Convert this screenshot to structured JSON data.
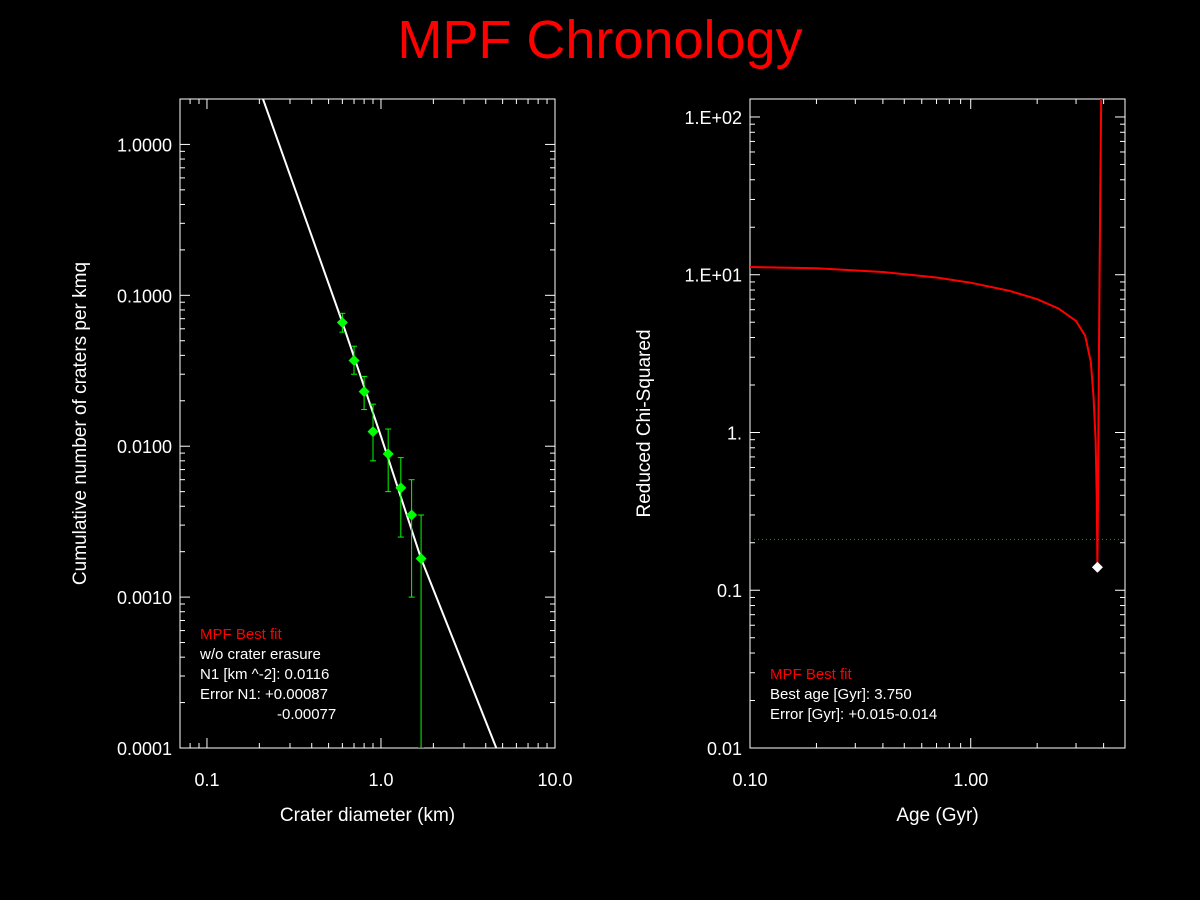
{
  "page": {
    "title": "MPF Chronology"
  },
  "colors": {
    "background": "#000000",
    "axes": "#ffffff",
    "title": "#ff0000",
    "points": "#00ff00",
    "fit_line": "#ffffff",
    "chi_curve": "#ff0000",
    "threshold_line": "#00aa00",
    "best_marker": "#ffffff"
  },
  "chart_data": [
    {
      "type": "scatter",
      "xlabel": "Crater diameter (km)",
      "ylabel": "Cumulative number of craters per kmq",
      "xscale": "log",
      "yscale": "log",
      "xlim": [
        0.07,
        10.0
      ],
      "ylim": [
        0.0001,
        2.0
      ],
      "xticks": [
        {
          "value": 0.1,
          "label": "0.1"
        },
        {
          "value": 1.0,
          "label": "1.0"
        },
        {
          "value": 10.0,
          "label": "10.0"
        }
      ],
      "yticks": [
        {
          "value": 0.0001,
          "label": "0.0001"
        },
        {
          "value": 0.001,
          "label": "0.0010"
        },
        {
          "value": 0.01,
          "label": "0.0100"
        },
        {
          "value": 0.1,
          "label": "0.1000"
        },
        {
          "value": 1.0,
          "label": "1.0000"
        }
      ],
      "grid": false,
      "series": [
        {
          "points": [
            {
              "x": 0.6,
              "y": 0.066,
              "ylo": 0.057,
              "yhi": 0.076
            },
            {
              "x": 0.7,
              "y": 0.037,
              "ylo": 0.03,
              "yhi": 0.046
            },
            {
              "x": 0.8,
              "y": 0.023,
              "ylo": 0.0175,
              "yhi": 0.029
            },
            {
              "x": 0.9,
              "y": 0.0125,
              "ylo": 0.008,
              "yhi": 0.019
            },
            {
              "x": 1.1,
              "y": 0.0089,
              "ylo": 0.005,
              "yhi": 0.013
            },
            {
              "x": 1.3,
              "y": 0.0053,
              "ylo": 0.0025,
              "yhi": 0.0084
            },
            {
              "x": 1.5,
              "y": 0.0035,
              "ylo": 0.001,
              "yhi": 0.006
            },
            {
              "x": 1.7,
              "y": 0.0018,
              "ylo": 0.0001,
              "yhi": 0.0035
            }
          ]
        }
      ],
      "fit_line": {
        "points": [
          {
            "x": 0.21,
            "y": 2.0
          },
          {
            "x": 0.6,
            "y": 0.066
          },
          {
            "x": 1.0,
            "y": 0.0116
          },
          {
            "x": 1.7,
            "y": 0.0018
          },
          {
            "x": 4.6,
            "y": 0.0001
          }
        ]
      },
      "annotation": {
        "lines": [
          {
            "text": "MPF Best fit",
            "color": "#ff0000"
          },
          {
            "text": "w/o crater erasure",
            "color": "#ffffff"
          },
          {
            "text": "N1 [km ^-2]: 0.0116",
            "color": "#ffffff"
          },
          {
            "text": "Error N1: +0.00087",
            "color": "#ffffff"
          },
          {
            "text": "-0.00077",
            "color": "#ffffff"
          }
        ],
        "position": "bottom-left"
      }
    },
    {
      "type": "line",
      "xlabel": "Age (Gyr)",
      "ylabel": "Reduced Chi-Squared",
      "xscale": "log",
      "yscale": "log",
      "xlim": [
        0.1,
        5.0
      ],
      "ylim": [
        0.01,
        130
      ],
      "xticks": [
        {
          "value": 0.1,
          "label": "0.10"
        },
        {
          "value": 1.0,
          "label": "1.00"
        }
      ],
      "yticks": [
        {
          "value": 0.01,
          "label": "0.01"
        },
        {
          "value": 0.1,
          "label": "0.1"
        },
        {
          "value": 1,
          "label": "1."
        },
        {
          "value": 10,
          "label": "1.E+01"
        },
        {
          "value": 100,
          "label": "1.E+02"
        }
      ],
      "grid": false,
      "series": [
        {
          "points": [
            {
              "x": 0.1,
              "y": 11.2
            },
            {
              "x": 0.2,
              "y": 11.0
            },
            {
              "x": 0.4,
              "y": 10.4
            },
            {
              "x": 0.7,
              "y": 9.6
            },
            {
              "x": 1.0,
              "y": 8.9
            },
            {
              "x": 1.5,
              "y": 7.9
            },
            {
              "x": 2.0,
              "y": 7.0
            },
            {
              "x": 2.5,
              "y": 6.1
            },
            {
              "x": 3.0,
              "y": 5.1
            },
            {
              "x": 3.3,
              "y": 4.1
            },
            {
              "x": 3.5,
              "y": 2.8
            },
            {
              "x": 3.6,
              "y": 1.7
            },
            {
              "x": 3.68,
              "y": 0.9
            },
            {
              "x": 3.72,
              "y": 0.4
            },
            {
              "x": 3.74,
              "y": 0.2
            },
            {
              "x": 3.75,
              "y": 0.14
            },
            {
              "x": 3.77,
              "y": 0.3
            },
            {
              "x": 3.79,
              "y": 1.0
            },
            {
              "x": 3.82,
              "y": 5.0
            },
            {
              "x": 3.86,
              "y": 30
            },
            {
              "x": 3.9,
              "y": 130
            }
          ]
        }
      ],
      "threshold": {
        "y": 0.21
      },
      "best_point": {
        "x": 3.75,
        "y": 0.14
      },
      "annotation": {
        "lines": [
          {
            "text": "MPF Best fit",
            "color": "#ff0000"
          },
          {
            "text": "Best age [Gyr]: 3.750",
            "color": "#ffffff"
          },
          {
            "text": "Error [Gyr]: +0.015-0.014",
            "color": "#ffffff"
          }
        ],
        "position": "bottom-left"
      }
    }
  ]
}
